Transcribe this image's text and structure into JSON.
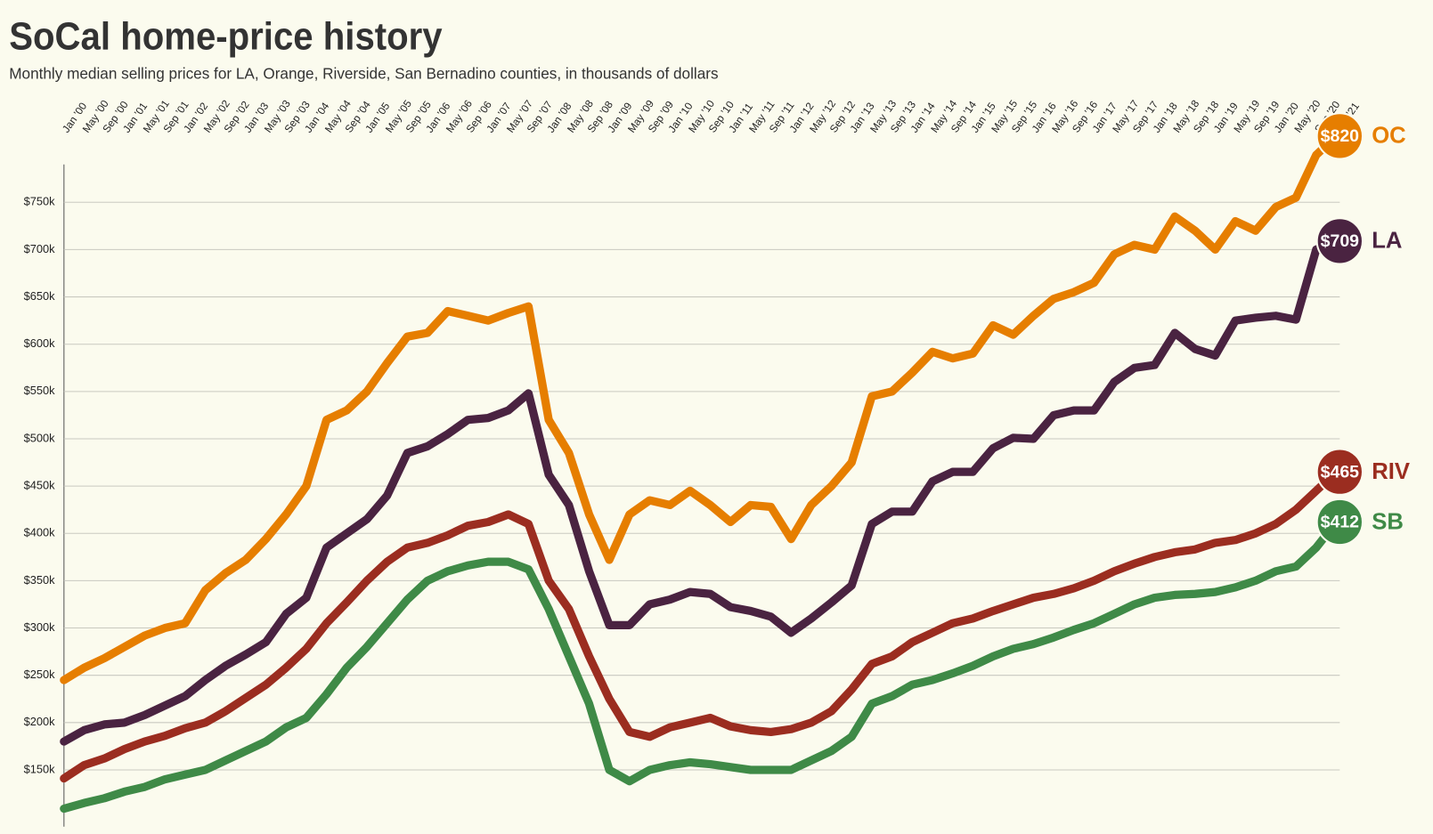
{
  "chart_data": {
    "type": "line",
    "title": "SoCal home-price history",
    "subtitle": "Monthly median selling prices for LA, Orange, Riverside, San Bernadino counties, in thousands of dollars",
    "categories": [
      "Jan ’00",
      "May ’00",
      "Sep ’00",
      "Jan ’01",
      "May ’01",
      "Sep ’01",
      "Jan ’02",
      "May ’02",
      "Sep ’02",
      "Jan ’03",
      "May ’03",
      "Sep ’03",
      "Jan ’04",
      "May ’04",
      "Sep ’04",
      "Jan ’05",
      "May ’05",
      "Sep ’05",
      "Jan ’06",
      "May ’06",
      "Sep ’06",
      "Jan ’07",
      "May ’07",
      "Sep ’07",
      "Jan ’08",
      "May ’08",
      "Sep ’08",
      "Jan ’09",
      "May ’09",
      "Sep ’09",
      "Jan ’10",
      "May ’10",
      "Sep ’10",
      "Jan ’11",
      "May ’11",
      "Sep ’11",
      "Jan ’12",
      "May ’12",
      "Sep ’12",
      "Jan ’13",
      "May ’13",
      "Sep ’13",
      "Jan ’14",
      "May ’14",
      "Sep ’14",
      "Jan ’15",
      "May ’15",
      "Sep ’15",
      "Jan ’16",
      "May ’16",
      "Sep ’16",
      "Jan ’17",
      "May ’17",
      "Sep ’17",
      "Jan ’18",
      "May ’18",
      "Sep ’18",
      "Jan ’19",
      "May ’19",
      "Sep ’19",
      "Jan ’20",
      "May ’20",
      "Sep ’20",
      "Jan ’21"
    ],
    "ylim": [
      90,
      790
    ],
    "yticks": [
      {
        "value": 150,
        "label": "$150k"
      },
      {
        "value": 200,
        "label": "$200k"
      },
      {
        "value": 250,
        "label": "$250k"
      },
      {
        "value": 300,
        "label": "$300k"
      },
      {
        "value": 350,
        "label": "$350k"
      },
      {
        "value": 400,
        "label": "$400k"
      },
      {
        "value": 450,
        "label": "$450k"
      },
      {
        "value": 500,
        "label": "$500k"
      },
      {
        "value": 550,
        "label": "$550k"
      },
      {
        "value": 600,
        "label": "$600k"
      },
      {
        "value": 650,
        "label": "$650k"
      },
      {
        "value": 700,
        "label": "$700k"
      },
      {
        "value": 750,
        "label": "$750k"
      }
    ],
    "grid": true,
    "series": [
      {
        "name": "OC",
        "color": "#e67e00",
        "end_label": "$820",
        "values": [
          245,
          258,
          268,
          280,
          292,
          300,
          305,
          340,
          358,
          372,
          394,
          420,
          450,
          520,
          530,
          550,
          580,
          608,
          612,
          635,
          630,
          625,
          633,
          640,
          520,
          485,
          420,
          372,
          420,
          435,
          430,
          445,
          430,
          412,
          430,
          428,
          394,
          430,
          450,
          475,
          545,
          550,
          570,
          592,
          585,
          590,
          620,
          610,
          630,
          648,
          655,
          665,
          695,
          705,
          700,
          735,
          720,
          700,
          730,
          720,
          745,
          755,
          800,
          820
        ]
      },
      {
        "name": "LA",
        "color": "#4a2341",
        "end_label": "$709",
        "values": [
          180,
          192,
          198,
          200,
          208,
          218,
          228,
          245,
          260,
          272,
          285,
          315,
          332,
          385,
          400,
          415,
          440,
          485,
          492,
          505,
          520,
          522,
          530,
          548,
          462,
          430,
          360,
          303,
          303,
          325,
          330,
          338,
          336,
          322,
          318,
          312,
          295,
          310,
          327,
          345,
          410,
          423,
          423,
          455,
          465,
          465,
          490,
          501,
          500,
          525,
          530,
          530,
          560,
          575,
          578,
          612,
          595,
          588,
          625,
          628,
          630,
          626,
          700,
          709
        ]
      },
      {
        "name": "RIV",
        "color": "#9b2d20",
        "end_label": "$465",
        "values": [
          141,
          155,
          162,
          172,
          180,
          186,
          194,
          200,
          212,
          226,
          240,
          258,
          278,
          305,
          327,
          350,
          370,
          385,
          390,
          398,
          408,
          412,
          420,
          410,
          350,
          320,
          270,
          225,
          190,
          185,
          195,
          200,
          205,
          196,
          192,
          190,
          193,
          200,
          212,
          235,
          262,
          270,
          285,
          295,
          305,
          310,
          318,
          325,
          332,
          336,
          342,
          350,
          360,
          368,
          375,
          380,
          383,
          390,
          393,
          400,
          410,
          425,
          445,
          465
        ]
      },
      {
        "name": "SB",
        "color": "#3f8a47",
        "end_label": "$412",
        "values": [
          109,
          115,
          120,
          127,
          132,
          140,
          145,
          150,
          160,
          170,
          180,
          195,
          205,
          230,
          258,
          280,
          305,
          330,
          350,
          360,
          366,
          370,
          370,
          362,
          320,
          270,
          220,
          150,
          138,
          150,
          155,
          158,
          156,
          153,
          150,
          150,
          150,
          160,
          170,
          185,
          220,
          228,
          240,
          245,
          252,
          260,
          270,
          278,
          283,
          290,
          298,
          305,
          315,
          325,
          332,
          335,
          336,
          338,
          343,
          350,
          360,
          365,
          385,
          412
        ]
      }
    ]
  }
}
